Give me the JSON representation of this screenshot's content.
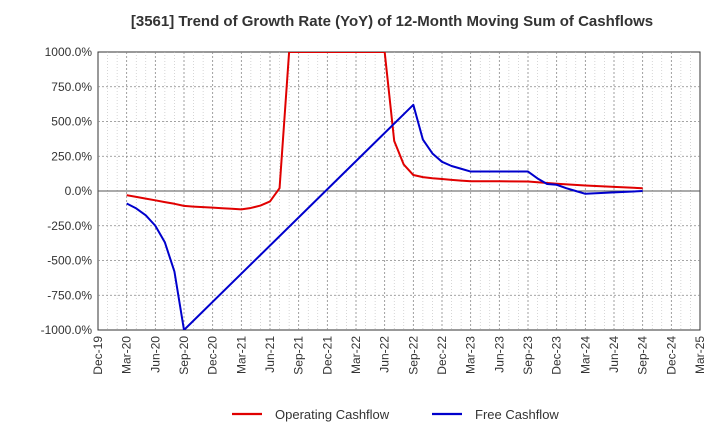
{
  "chart_data": {
    "type": "line",
    "title": "[3561]  Trend of Growth Rate (YoY) of 12-Month Moving Sum of Cashflows",
    "xlabel": "",
    "ylabel": "",
    "ylim": [
      -1000,
      1000
    ],
    "y_ticks": [
      1000,
      750,
      500,
      250,
      0,
      -250,
      -500,
      -750,
      -1000
    ],
    "y_tick_labels": [
      "1000.0%",
      "750.0%",
      "500.0%",
      "250.0%",
      "0.0%",
      "-250.0%",
      "-500.0%",
      "-750.0%",
      "-1000.0%"
    ],
    "x_ticks": [
      "Dec-19",
      "Mar-20",
      "Jun-20",
      "Sep-20",
      "Dec-20",
      "Mar-21",
      "Jun-21",
      "Sep-21",
      "Dec-21",
      "Mar-22",
      "Jun-22",
      "Sep-22",
      "Dec-22",
      "Mar-23",
      "Jun-23",
      "Sep-23",
      "Dec-23",
      "Mar-24",
      "Jun-24",
      "Sep-24",
      "Dec-24",
      "Mar-25"
    ],
    "grid": true,
    "legend_position": "bottom",
    "series": [
      {
        "name": "Operating Cashflow",
        "color": "#e00000",
        "points": [
          [
            "Mar-20",
            -30
          ],
          [
            "Apr-20",
            -42
          ],
          [
            "May-20",
            -55
          ],
          [
            "Jun-20",
            -67
          ],
          [
            "Jul-20",
            -80
          ],
          [
            "Aug-20",
            -92
          ],
          [
            "Sep-20",
            -107
          ],
          [
            "Oct-20",
            -112
          ],
          [
            "Nov-20",
            -116
          ],
          [
            "Dec-20",
            -120
          ],
          [
            "Jan-21",
            -124
          ],
          [
            "Feb-21",
            -128
          ],
          [
            "Mar-21",
            -132
          ],
          [
            "Apr-21",
            -122
          ],
          [
            "May-21",
            -105
          ],
          [
            "Jun-21",
            -75
          ],
          [
            "Jul-21",
            20
          ],
          [
            "Aug-21",
            1000
          ],
          [
            "Jun-22",
            1000
          ],
          [
            "Jul-22",
            360
          ],
          [
            "Aug-22",
            190
          ],
          [
            "Sep-22",
            115
          ],
          [
            "Oct-22",
            100
          ],
          [
            "Nov-22",
            92
          ],
          [
            "Dec-22",
            86
          ],
          [
            "Jan-23",
            80
          ],
          [
            "Feb-23",
            75
          ],
          [
            "Mar-23",
            70
          ],
          [
            "Jun-23",
            70
          ],
          [
            "Sep-23",
            68
          ],
          [
            "Dec-23",
            52
          ],
          [
            "Mar-24",
            40
          ],
          [
            "Jun-24",
            30
          ],
          [
            "Sep-24",
            20
          ]
        ]
      },
      {
        "name": "Free Cashflow",
        "color": "#0000cc",
        "points": [
          [
            "Mar-20",
            -90
          ],
          [
            "Apr-20",
            -125
          ],
          [
            "May-20",
            -175
          ],
          [
            "Jun-20",
            -250
          ],
          [
            "Jul-20",
            -370
          ],
          [
            "Aug-20",
            -580
          ],
          [
            "Sep-20",
            -1000
          ],
          [
            "Sep-22",
            620
          ],
          [
            "Oct-22",
            370
          ],
          [
            "Nov-22",
            270
          ],
          [
            "Dec-22",
            210
          ],
          [
            "Jan-23",
            180
          ],
          [
            "Feb-23",
            160
          ],
          [
            "Mar-23",
            140
          ],
          [
            "Jun-23",
            140
          ],
          [
            "Sep-23",
            140
          ],
          [
            "Oct-23",
            90
          ],
          [
            "Nov-23",
            50
          ],
          [
            "Dec-23",
            45
          ],
          [
            "Jan-24",
            20
          ],
          [
            "Feb-24",
            0
          ],
          [
            "Mar-24",
            -20
          ],
          [
            "Jun-24",
            -10
          ],
          [
            "Sep-24",
            0
          ]
        ]
      }
    ]
  }
}
